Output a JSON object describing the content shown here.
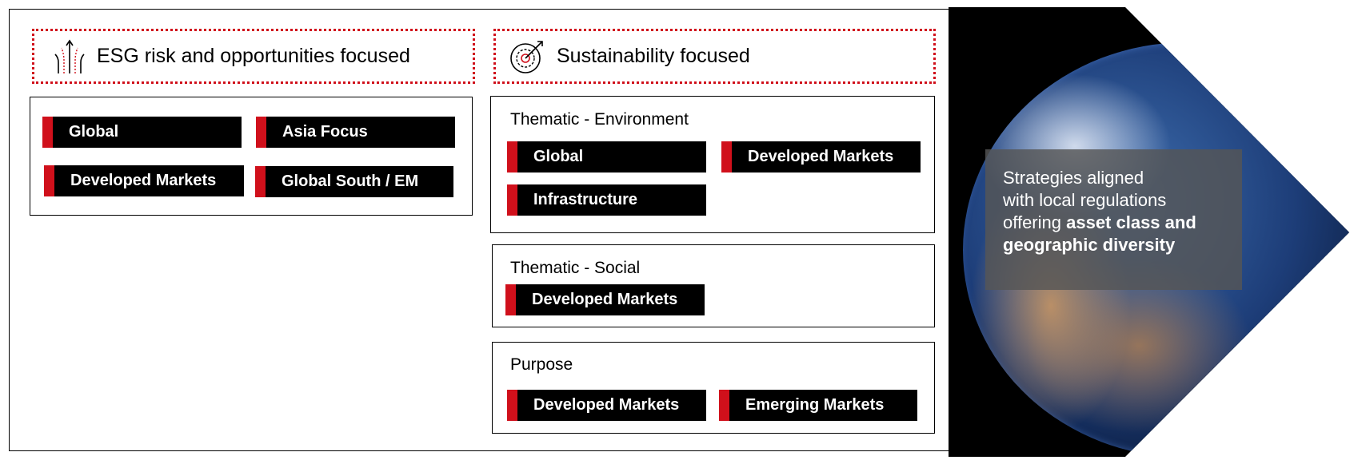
{
  "left": {
    "header": "ESG risk and opportunities focused",
    "icon": "diverging-arrows-icon",
    "items": [
      "Global",
      "Asia Focus",
      "Developed Markets",
      "Global South / EM"
    ]
  },
  "right": {
    "header": "Sustainability focused",
    "icon": "target-arrow-icon",
    "groups": [
      {
        "title": "Thematic - Environment",
        "items": [
          "Global",
          "Developed Markets",
          "Infrastructure"
        ]
      },
      {
        "title": "Thematic - Social",
        "items": [
          "Developed Markets"
        ]
      },
      {
        "title": "Purpose",
        "items": [
          "Developed Markets",
          "Emerging Markets"
        ]
      }
    ]
  },
  "caption": {
    "line1": "Strategies aligned",
    "line2": "with local regulations",
    "line3_normal": "offering ",
    "line3_bold": "asset class and",
    "line4_bold": "geographic diversity"
  },
  "colors": {
    "accent": "#d0101b",
    "pill": "#000000"
  }
}
